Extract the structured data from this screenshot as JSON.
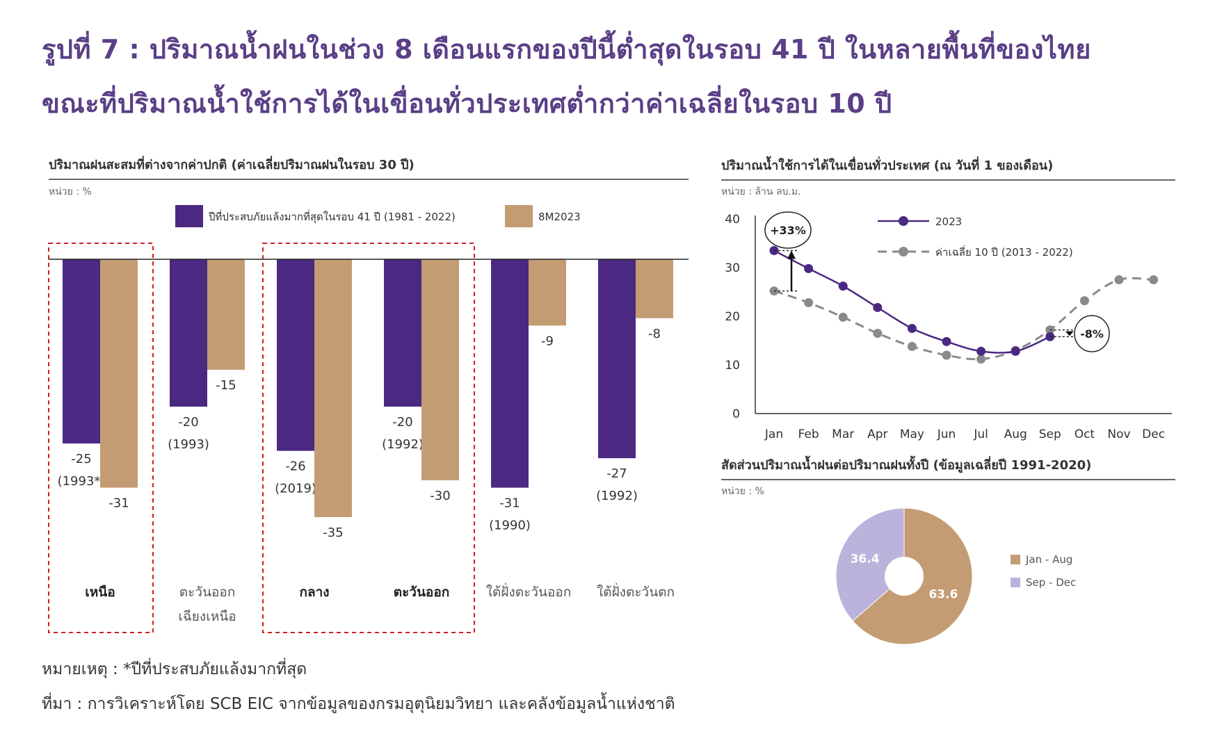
{
  "figure": {
    "title_line1": "รูปที่ 7 : ปริมาณน้ำฝนในช่วง 8 เดือนแรกของปีนี้ต่ำสุดในรอบ 41 ปี ในหลายพื้นที่ของไทย",
    "title_line2": "ขณะที่ปริมาณน้ำใช้การได้ในเขื่อนทั่วประเทศต่ำกว่าค่าเฉลี่ยในรอบ 10 ปี",
    "footnote": "หมายเหตุ : *ปีที่ประสบภัยแล้งมากที่สุด",
    "source": "ที่มา : การวิเคราะห์โดย SCB EIC จากข้อมูลของกรมอุตุนิยมวิทยา และคลังข้อมูลน้ำแห่งชาติ"
  },
  "chart_data": [
    {
      "type": "bar",
      "title": "ปริมาณฝนสะสมที่ต่างจากค่าปกติ (ค่าเฉลี่ยปริมาณฝนในรอบ 30 ปี)",
      "unit": "หน่วย : %",
      "categories": [
        [
          "เหนือ"
        ],
        [
          "ตะวันออก",
          "เฉียงเหนือ"
        ],
        [
          "กลาง"
        ],
        [
          "ตะวันออก"
        ],
        [
          "ใต้ฝั่งตะวันออก"
        ],
        [
          "ใต้ฝั่งตะวันตก"
        ]
      ],
      "bold_categories": [
        0,
        2,
        3
      ],
      "highlight_groups": [
        [
          0
        ],
        [
          2,
          3
        ]
      ],
      "series": [
        {
          "name": "ปีที่ประสบภัยแล้งมากที่สุดในรอบ 41 ปี (1981 - 2022)",
          "color": "#4b2982",
          "values": [
            -25,
            -20,
            -26,
            -20,
            -31,
            -27
          ],
          "labels": [
            "(1993*)",
            "(1993)",
            "(2019)",
            "(1992)",
            "(1990)",
            "(1992)"
          ]
        },
        {
          "name": "8M2023",
          "color": "#c49c74",
          "values": [
            -31,
            -15,
            -35,
            -30,
            -9,
            -8
          ]
        }
      ],
      "ylim": [
        -35,
        0
      ]
    },
    {
      "type": "line",
      "title": "ปริมาณน้ำใช้การได้ในเขื่อนทั่วประเทศ (ณ วันที่ 1 ของเดือน)",
      "unit": "หน่วย : ล้าน ลบ.ม.",
      "x": [
        "Jan",
        "Feb",
        "Mar",
        "Apr",
        "May",
        "Jun",
        "Jul",
        "Aug",
        "Sep",
        "Oct",
        "Nov",
        "Dec"
      ],
      "yticks": [
        0,
        10,
        20,
        30,
        40
      ],
      "ylim": [
        0,
        40
      ],
      "series": [
        {
          "name": "2023",
          "color": "#4b2982",
          "style": "solid",
          "values": [
            33.5,
            29.8,
            26.2,
            21.8,
            17.5,
            14.8,
            12.8,
            12.8,
            15.8,
            null,
            null,
            null
          ]
        },
        {
          "name": "ค่าเฉลี่ย 10 ปี (2013 - 2022)",
          "color": "#8a8a8a",
          "style": "dashed",
          "values": [
            25.2,
            22.8,
            19.8,
            16.5,
            13.8,
            12.0,
            11.2,
            13.0,
            17.2,
            23.2,
            27.5,
            27.5
          ]
        }
      ],
      "annotations": [
        {
          "text": "+33%",
          "month": "Jan"
        },
        {
          "text": "-8%",
          "month": "Sep"
        }
      ]
    },
    {
      "type": "pie",
      "title": "สัดส่วนปริมาณน้ำฝนต่อปริมาณฝนทั้งปี (ข้อมูลเฉลี่ยปี 1991-2020)",
      "unit": "หน่วย : %",
      "labels": [
        "Jan - Aug",
        "Sep - Dec"
      ],
      "values": [
        63.6,
        36.4
      ],
      "colors": [
        "#c49c74",
        "#bcb3dc"
      ]
    }
  ]
}
